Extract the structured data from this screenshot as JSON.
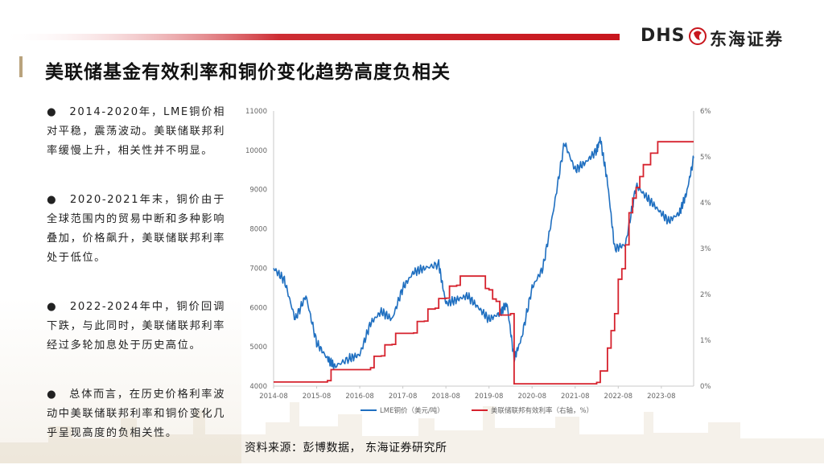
{
  "header": {
    "logo_latin": "DHS",
    "logo_cn": "东海证券",
    "accent_red": "#c8161d",
    "accent_gold": "#b9a37d"
  },
  "title": "美联储基金有效利率和铜价变化趋势高度负相关",
  "bullets": [
    "●　2014-2020年，LME铜价相对平稳，震荡波动。美联储联邦利率缓慢上升，相关性并不明显。",
    "●　2020-2021年末，铜价由于全球范围内的贸易中断和多种影响叠加，价格飙升，美联储联邦利率处于低位。",
    "●　2022-2024年中，铜价回调下跌，与此同时，美联储联邦利率经过多轮加息处于历史高位。",
    "●　总体而言，在历史价格利率波动中美联储联邦利率和铜价变化几乎呈现高度的负相关性。"
  ],
  "source": "资料来源：彭博数据， 东海证券研究所",
  "chart_data": {
    "type": "line",
    "x_ticks": [
      "2014-08",
      "2015-08",
      "2016-08",
      "2017-08",
      "2018-08",
      "2019-08",
      "2020-08",
      "2021-08",
      "2022-08",
      "2023-08"
    ],
    "y_left_ticks": [
      "4000",
      "5000",
      "6000",
      "7000",
      "8000",
      "9000",
      "10000",
      "11000"
    ],
    "y_right_ticks": [
      "0%",
      "1%",
      "2%",
      "3%",
      "4%",
      "5%",
      "6%"
    ],
    "ylim_left": [
      4000,
      11000
    ],
    "ylim_right": [
      0,
      6
    ],
    "xlim": [
      "2014-08",
      "2024-05"
    ],
    "grid": false,
    "legend_position": "bottom",
    "series": [
      {
        "name": "LME铜价（美元/吨）",
        "axis": "left",
        "color": "#1f6fc0",
        "x": [
          "2014-08",
          "2014-11",
          "2015-02",
          "2015-05",
          "2015-08",
          "2015-11",
          "2016-01",
          "2016-05",
          "2016-08",
          "2016-11",
          "2017-02",
          "2017-05",
          "2017-08",
          "2017-11",
          "2018-02",
          "2018-06",
          "2018-08",
          "2018-11",
          "2019-02",
          "2019-05",
          "2019-08",
          "2019-11",
          "2020-01",
          "2020-03",
          "2020-05",
          "2020-08",
          "2020-11",
          "2021-02",
          "2021-05",
          "2021-08",
          "2021-11",
          "2022-02",
          "2022-03",
          "2022-05",
          "2022-07",
          "2022-10",
          "2023-01",
          "2023-04",
          "2023-07",
          "2023-10",
          "2024-01",
          "2024-03",
          "2024-05"
        ],
        "values": [
          7000,
          6700,
          5700,
          6300,
          5100,
          4700,
          4500,
          4700,
          4800,
          5600,
          5900,
          5700,
          6500,
          6900,
          7000,
          7100,
          6100,
          6200,
          6300,
          6000,
          5700,
          5850,
          6100,
          4700,
          5200,
          6500,
          7000,
          8500,
          10200,
          9500,
          9700,
          10000,
          10300,
          9200,
          7500,
          7600,
          9100,
          8800,
          8500,
          8200,
          8400,
          8900,
          9800
        ]
      },
      {
        "name": "美联储联邦有效利率（右轴，%）",
        "axis": "right",
        "color": "#d6222d",
        "x": [
          "2014-08",
          "2015-11",
          "2015-12",
          "2016-11",
          "2016-12",
          "2017-02",
          "2017-03",
          "2017-05",
          "2017-06",
          "2017-11",
          "2017-12",
          "2018-02",
          "2018-03",
          "2018-05",
          "2018-06",
          "2018-08",
          "2018-09",
          "2018-11",
          "2018-12",
          "2019-06",
          "2019-07",
          "2019-08",
          "2019-09",
          "2019-10",
          "2019-11",
          "2020-02",
          "2020-03",
          "2022-02",
          "2022-03",
          "2022-04",
          "2022-05",
          "2022-06",
          "2022-07",
          "2022-08",
          "2022-09",
          "2022-10",
          "2022-11",
          "2022-12",
          "2023-01",
          "2023-02",
          "2023-03",
          "2023-05",
          "2023-07",
          "2024-05"
        ],
        "values": [
          0.09,
          0.12,
          0.36,
          0.4,
          0.65,
          0.66,
          0.9,
          0.91,
          1.15,
          1.16,
          1.41,
          1.42,
          1.68,
          1.7,
          1.91,
          1.92,
          2.18,
          2.2,
          2.4,
          2.4,
          2.13,
          2.1,
          1.9,
          1.85,
          1.55,
          1.58,
          0.05,
          0.08,
          0.33,
          0.33,
          0.83,
          1.21,
          1.58,
          2.33,
          2.56,
          3.08,
          3.78,
          4.1,
          4.33,
          4.57,
          4.83,
          5.08,
          5.33,
          5.33
        ]
      }
    ]
  }
}
